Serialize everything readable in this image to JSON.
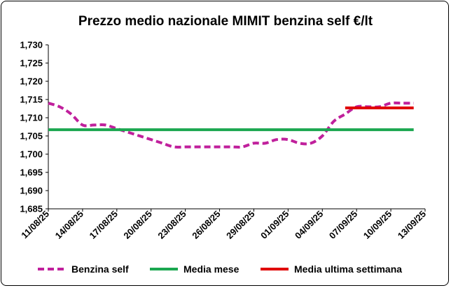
{
  "chart_data": {
    "type": "line",
    "title": "Prezzo medio nazionale MIMIT benzina self €/lt",
    "xlabel": "",
    "ylabel": "",
    "ylim": [
      1.685,
      1.73
    ],
    "yticks": [
      "1,685",
      "1,690",
      "1,695",
      "1,700",
      "1,705",
      "1,710",
      "1,715",
      "1,720",
      "1,725",
      "1,730"
    ],
    "x_range": [
      "2025-08-11",
      "2025-09-13"
    ],
    "xticks": [
      "11/08/25",
      "14/08/25",
      "17/08/25",
      "20/08/25",
      "23/08/25",
      "26/08/25",
      "29/08/25",
      "01/09/25",
      "04/09/25",
      "07/09/25",
      "10/09/25",
      "13/09/25"
    ],
    "grid": false,
    "legend_position": "bottom",
    "series": [
      {
        "name": "Benzina self",
        "color": "#C0209C",
        "style": "dashed",
        "x": [
          "2025-08-11",
          "2025-08-12",
          "2025-08-13",
          "2025-08-14",
          "2025-08-15",
          "2025-08-16",
          "2025-08-17",
          "2025-08-18",
          "2025-08-19",
          "2025-08-20",
          "2025-08-21",
          "2025-08-22",
          "2025-08-23",
          "2025-08-24",
          "2025-08-25",
          "2025-08-26",
          "2025-08-27",
          "2025-08-28",
          "2025-08-29",
          "2025-08-30",
          "2025-08-31",
          "2025-09-01",
          "2025-09-02",
          "2025-09-03",
          "2025-09-04",
          "2025-09-05",
          "2025-09-06",
          "2025-09-07",
          "2025-09-08",
          "2025-09-09",
          "2025-09-10",
          "2025-09-11",
          "2025-09-12"
        ],
        "values": [
          1.714,
          1.713,
          1.711,
          1.708,
          1.708,
          1.708,
          1.707,
          1.706,
          1.705,
          1.704,
          1.703,
          1.702,
          1.702,
          1.702,
          1.702,
          1.702,
          1.702,
          1.702,
          1.703,
          1.703,
          1.704,
          1.704,
          1.703,
          1.703,
          1.705,
          1.709,
          1.711,
          1.713,
          1.713,
          1.713,
          1.714,
          1.714,
          1.714
        ]
      },
      {
        "name": "Media mese",
        "color": "#1BA750",
        "style": "solid",
        "x": [
          "2025-08-11",
          "2025-09-12"
        ],
        "values": [
          1.7067,
          1.7067
        ]
      },
      {
        "name": "Media ultima settimana",
        "color": "#E00000",
        "style": "solid",
        "x": [
          "2025-09-06",
          "2025-09-12"
        ],
        "values": [
          1.7127,
          1.7127
        ]
      }
    ]
  }
}
